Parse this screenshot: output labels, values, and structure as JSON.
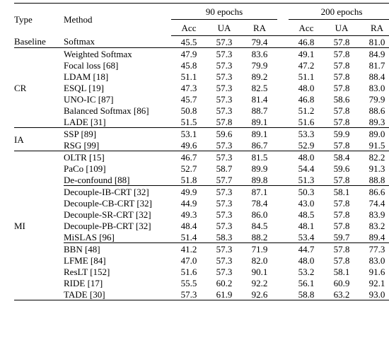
{
  "header": {
    "type": "Type",
    "method": "Method",
    "group_a": "90 epochs",
    "group_b": "200 epochs",
    "cols": [
      "Acc",
      "UA",
      "RA",
      "Acc",
      "UA",
      "RA"
    ]
  },
  "groups": [
    {
      "type": "Baseline",
      "subgroups": [
        [
          {
            "method": "Softmax",
            "v": [
              "45.5",
              "57.3",
              "79.4",
              "46.8",
              "57.8",
              "81.0"
            ]
          }
        ]
      ]
    },
    {
      "type": "CR",
      "subgroups": [
        [
          {
            "method": "Weighted Softmax",
            "v": [
              "47.9",
              "57.3",
              "83.6",
              "49.1",
              "57.8",
              "84.9"
            ]
          },
          {
            "method": "Focal loss [68]",
            "v": [
              "45.8",
              "57.3",
              "79.9",
              "47.2",
              "57.8",
              "81.7"
            ]
          },
          {
            "method": "LDAM [18]",
            "v": [
              "51.1",
              "57.3",
              "89.2",
              "51.1",
              "57.8",
              "88.4"
            ]
          },
          {
            "method": "ESQL [19]",
            "v": [
              "47.3",
              "57.3",
              "82.5",
              "48.0",
              "57.8",
              "83.0"
            ]
          },
          {
            "method": "UNO-IC [87]",
            "v": [
              "45.7",
              "57.3",
              "81.4",
              "46.8",
              "58.6",
              "79.9"
            ]
          },
          {
            "method": "Balanced Softmax [86]",
            "v": [
              "50.8",
              "57.3",
              "88.7",
              "51.2",
              "57.8",
              "88.6"
            ]
          },
          {
            "method": "LADE [31]",
            "v": [
              "51.5",
              "57.8",
              "89.1",
              "51.6",
              "57.8",
              "89.3"
            ]
          }
        ]
      ]
    },
    {
      "type": "IA",
      "subgroups": [
        [
          {
            "method": "SSP [89]",
            "v": [
              "53.1",
              "59.6",
              "89.1",
              "53.3",
              "59.9",
              "89.0"
            ]
          },
          {
            "method": "RSG [99]",
            "v": [
              "49.6",
              "57.3",
              "86.7",
              "52.9",
              "57.8",
              "91.5"
            ]
          }
        ]
      ]
    },
    {
      "type": "MI",
      "subgroups": [
        [
          {
            "method": "OLTR [15]",
            "v": [
              "46.7",
              "57.3",
              "81.5",
              "48.0",
              "58.4",
              "82.2"
            ]
          },
          {
            "method": "PaCo [109]",
            "v": [
              "52.7",
              "58.7",
              "89.9",
              "54.4",
              "59.6",
              "91.3"
            ]
          },
          {
            "method": "De-confound [88]",
            "v": [
              "51.8",
              "57.7",
              "89.8",
              "51.3",
              "57.8",
              "88.8"
            ]
          }
        ],
        [
          {
            "method": "Decouple-IB-CRT [32]",
            "v": [
              "49.9",
              "57.3",
              "87.1",
              "50.3",
              "58.1",
              "86.6"
            ]
          },
          {
            "method": "Decouple-CB-CRT [32]",
            "v": [
              "44.9",
              "57.3",
              "78.4",
              "43.0",
              "57.8",
              "74.4"
            ]
          },
          {
            "method": "Decouple-SR-CRT [32]",
            "v": [
              "49.3",
              "57.3",
              "86.0",
              "48.5",
              "57.8",
              "83.9"
            ]
          },
          {
            "method": "Decouple-PB-CRT [32]",
            "v": [
              "48.4",
              "57.3",
              "84.5",
              "48.1",
              "57.8",
              "83.2"
            ]
          },
          {
            "method": "MiSLAS [96]",
            "v": [
              "51.4",
              "58.3",
              "88.2",
              "53.4",
              "59.7",
              "89.4"
            ]
          }
        ],
        [
          {
            "method": "BBN [48]",
            "v": [
              "41.2",
              "57.3",
              "71.9",
              "44.7",
              "57.8",
              "77.3"
            ]
          },
          {
            "method": "LFME [84]",
            "v": [
              "47.0",
              "57.3",
              "82.0",
              "48.0",
              "57.8",
              "83.0"
            ]
          },
          {
            "method": "ResLT [152]",
            "v": [
              "51.6",
              "57.3",
              "90.1",
              "53.2",
              "58.1",
              "91.6"
            ]
          },
          {
            "method": "RIDE [17]",
            "v": [
              "55.5",
              "60.2",
              "92.2",
              "56.1",
              "60.9",
              "92.1"
            ]
          },
          {
            "method": "TADE [30]",
            "v": [
              "57.3",
              "61.9",
              "92.6",
              "58.8",
              "63.2",
              "93.0"
            ],
            "bold": true
          }
        ]
      ]
    }
  ]
}
